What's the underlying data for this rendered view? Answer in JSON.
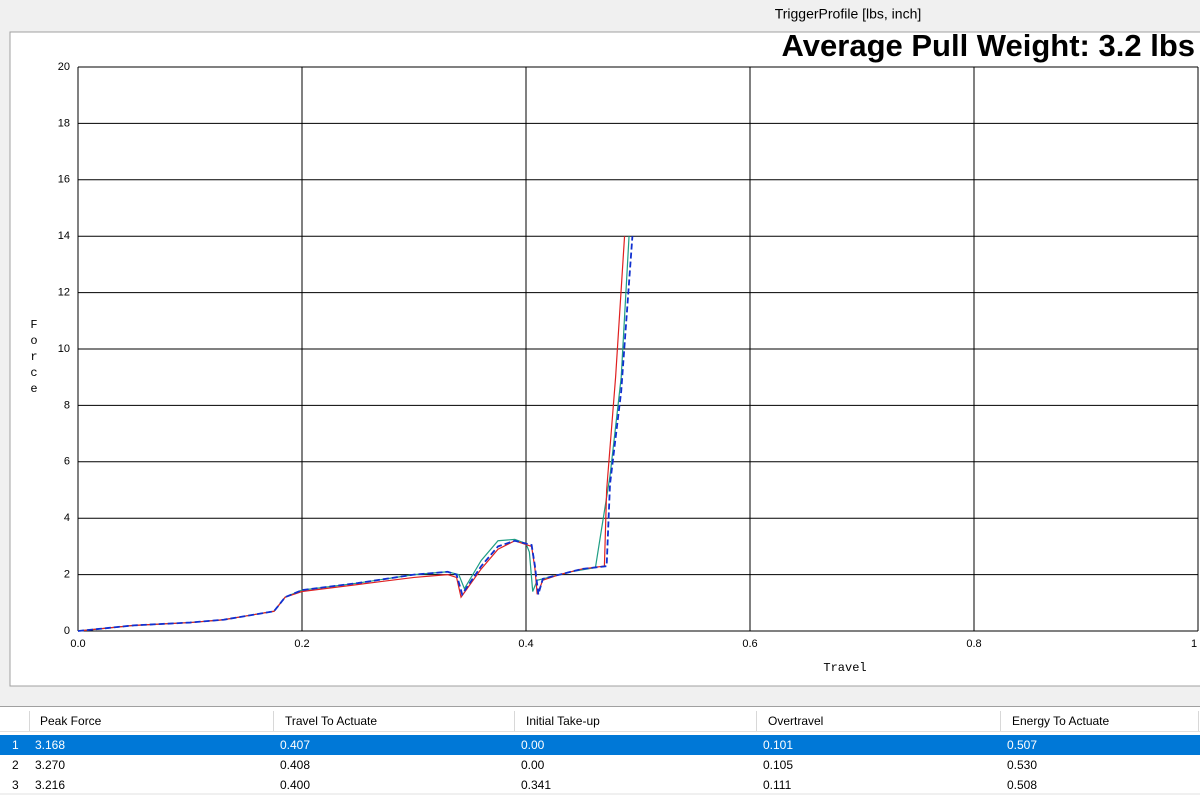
{
  "chart_data": {
    "type": "line",
    "title": "TriggerProfile [lbs, inch]",
    "annotation": "Average Pull Weight: 3.2 lbs",
    "x_label": "Travel",
    "y_label": "Force",
    "xlim": [
      0,
      1
    ],
    "ylim": [
      0,
      20
    ],
    "xticks": [
      {
        "value": 0,
        "label": "0.0"
      },
      0.2,
      0.4,
      0.6,
      0.8,
      1
    ],
    "yticks": [
      0,
      2,
      4,
      6,
      8,
      10,
      12,
      14,
      16,
      18,
      20
    ],
    "grid": true,
    "series": [
      {
        "color": "#1f9e84",
        "dashed": false,
        "x": [
          0,
          0.05,
          0.1,
          0.13,
          0.16,
          0.175,
          0.185,
          0.2,
          0.25,
          0.3,
          0.33,
          0.34,
          0.345,
          0.36,
          0.375,
          0.39,
          0.4,
          0.403,
          0.406,
          0.41,
          0.42,
          0.44,
          0.462,
          0.465,
          0.475,
          0.485,
          0.492
        ],
        "values": [
          0,
          0.2,
          0.3,
          0.4,
          0.6,
          0.7,
          1.2,
          1.45,
          1.7,
          2.0,
          2.1,
          2.0,
          1.5,
          2.5,
          3.2,
          3.25,
          3.1,
          2.8,
          1.4,
          1.8,
          1.9,
          2.1,
          2.25,
          3.0,
          5.5,
          9.0,
          14.0
        ]
      },
      {
        "color": "#e02020",
        "dashed": false,
        "x": [
          0,
          0.05,
          0.1,
          0.13,
          0.16,
          0.175,
          0.185,
          0.2,
          0.25,
          0.3,
          0.33,
          0.338,
          0.342,
          0.36,
          0.375,
          0.39,
          0.405,
          0.408,
          0.41,
          0.415,
          0.43,
          0.45,
          0.47,
          0.472,
          0.48,
          0.488
        ],
        "values": [
          0,
          0.2,
          0.3,
          0.4,
          0.6,
          0.7,
          1.2,
          1.4,
          1.65,
          1.9,
          2.0,
          1.9,
          1.2,
          2.2,
          2.9,
          3.2,
          3.0,
          2.2,
          1.3,
          1.8,
          2.0,
          2.2,
          2.3,
          5,
          9,
          14
        ]
      },
      {
        "color": "#1030d0",
        "dashed": true,
        "x": [
          0,
          0.05,
          0.1,
          0.13,
          0.16,
          0.175,
          0.185,
          0.2,
          0.25,
          0.3,
          0.33,
          0.338,
          0.343,
          0.36,
          0.375,
          0.39,
          0.405,
          0.408,
          0.411,
          0.415,
          0.43,
          0.45,
          0.472,
          0.475,
          0.485,
          0.495
        ],
        "values": [
          0,
          0.2,
          0.3,
          0.4,
          0.6,
          0.7,
          1.2,
          1.45,
          1.7,
          2.0,
          2.1,
          2.0,
          1.3,
          2.3,
          3.0,
          3.2,
          3.05,
          2.3,
          1.3,
          1.85,
          2.0,
          2.2,
          2.3,
          5.2,
          8.5,
          14.0
        ]
      }
    ]
  },
  "table": {
    "columns": [
      "Peak Force",
      "Travel To Actuate",
      "Initial Take-up",
      "Overtravel",
      "Energy To Actuate"
    ],
    "rows": [
      [
        "1",
        "3.168",
        "0.407",
        "0.00",
        "0.101",
        "0.507"
      ],
      [
        "2",
        "3.270",
        "0.408",
        "0.00",
        "0.105",
        "0.530"
      ],
      [
        "3",
        "3.216",
        "0.400",
        "0.341",
        "0.111",
        "0.508"
      ]
    ],
    "selected_row": 0
  }
}
